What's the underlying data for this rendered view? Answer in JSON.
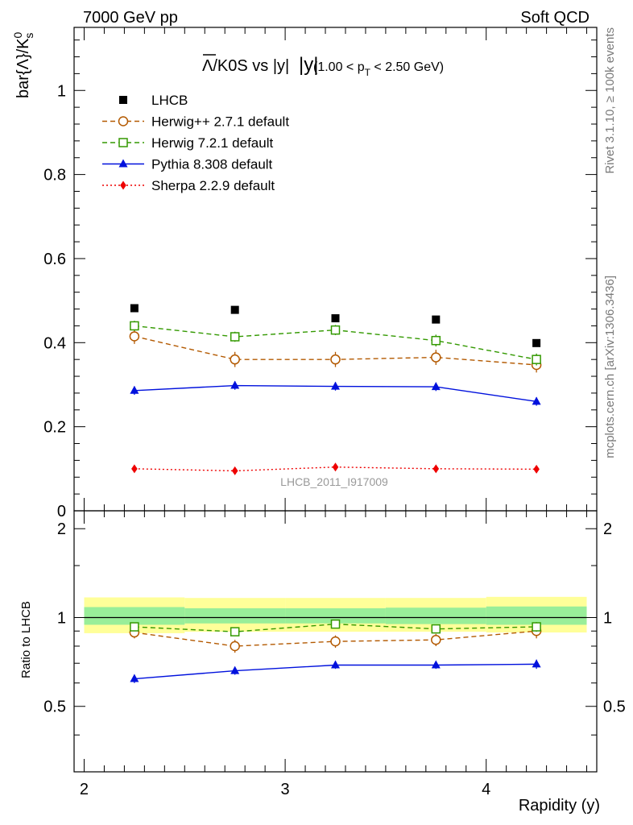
{
  "header": {
    "left_label": "7000 GeV pp",
    "right_label": "Soft QCD"
  },
  "side_labels": {
    "rivet": "Rivet 3.1.10, ≥ 100k events",
    "mcplots": "mcplots.cern.ch [arXiv:1306.3436]"
  },
  "colors": {
    "data": "#000000",
    "herwigpp": "#b35900",
    "herwig7": "#339900",
    "pythia": "#0011dd",
    "sherpa": "#ee0000",
    "band_outer": "#ffff99",
    "band_inner": "#99ee99"
  },
  "chart_data": [
    {
      "type": "scatter",
      "title_main": "/K0S vs |y|",
      "title_symbol": "Λ",
      "title_sub_pre": "(1.00 < p",
      "title_sub_sub": "T",
      "title_sub_post": " < 2.50 GeV)",
      "ylabel_main": "bar{Λ}/K",
      "ylabel_sup": "0",
      "ylabel_sub": "s",
      "watermark": "LHCB_2011_I917009",
      "xlim": [
        1.95,
        4.55
      ],
      "ylim": [
        0,
        1.15
      ],
      "y_ticks": [
        0,
        0.2,
        0.4,
        0.6,
        0.8,
        1
      ],
      "y_tick_labels": [
        "0",
        "0.2",
        "0.4",
        "0.6",
        "0.8",
        "1"
      ],
      "x": [
        2.25,
        2.75,
        3.25,
        3.75,
        4.25
      ],
      "series": [
        {
          "name": "LHCB",
          "key": "data",
          "values": [
            0.482,
            0.478,
            0.458,
            0.455,
            0.399
          ],
          "errors": [
            0.004,
            0.004,
            0.004,
            0.004,
            0.004
          ],
          "marker": "square",
          "line": "none"
        },
        {
          "name": "Herwig++ 2.7.1 default",
          "key": "herwigpp",
          "values": [
            0.415,
            0.36,
            0.36,
            0.365,
            0.347
          ],
          "errors": [
            0.018,
            0.018,
            0.018,
            0.018,
            0.018
          ],
          "marker": "circle-open",
          "line": "dashed"
        },
        {
          "name": "Herwig 7.2.1 default",
          "key": "herwig7",
          "values": [
            0.44,
            0.414,
            0.43,
            0.405,
            0.36
          ],
          "errors": [
            0.012,
            0.012,
            0.012,
            0.014,
            0.014
          ],
          "marker": "square-open",
          "line": "dashed"
        },
        {
          "name": "Pythia 8.308 default",
          "key": "pythia",
          "values": [
            0.286,
            0.298,
            0.296,
            0.295,
            0.26
          ],
          "errors": [
            0.01,
            0.01,
            0.01,
            0.01,
            0.01
          ],
          "marker": "triangle",
          "line": "solid"
        },
        {
          "name": "Sherpa 2.2.9 default",
          "key": "sherpa",
          "values": [
            0.1,
            0.095,
            0.104,
            0.1,
            0.099
          ],
          "errors": [
            0.004,
            0.004,
            0.004,
            0.004,
            0.004
          ],
          "marker": "diamond",
          "line": "dotted"
        }
      ],
      "legend_placement": "top-left"
    },
    {
      "type": "scatter",
      "ylabel": "Ratio to LHCB",
      "xlabel": "Rapidity (y)",
      "xlim": [
        1.95,
        4.55
      ],
      "ylim": [
        0.3,
        2.3
      ],
      "y_scale": "log",
      "y_ticks": [
        0.5,
        1,
        2
      ],
      "y_tick_labels": [
        "0.5",
        "1",
        "2"
      ],
      "x_ticks": [
        2,
        3,
        4
      ],
      "x_tick_labels": [
        "2",
        "3",
        "4"
      ],
      "reference_line": 1,
      "band_bins": [
        [
          2.0,
          2.5
        ],
        [
          2.5,
          3.0
        ],
        [
          3.0,
          3.5
        ],
        [
          3.5,
          4.0
        ],
        [
          4.0,
          4.5
        ]
      ],
      "band_inner": [
        [
          0.945,
          1.085
        ],
        [
          0.955,
          1.075
        ],
        [
          0.955,
          1.075
        ],
        [
          0.95,
          1.08
        ],
        [
          0.945,
          1.09
        ]
      ],
      "band_outer": [
        [
          0.885,
          1.17
        ],
        [
          0.895,
          1.165
        ],
        [
          0.895,
          1.165
        ],
        [
          0.895,
          1.165
        ],
        [
          0.89,
          1.175
        ]
      ],
      "x": [
        2.25,
        2.75,
        3.25,
        3.75,
        4.25
      ],
      "series": [
        {
          "name": "Herwig++ 2.7.1 default",
          "key": "herwigpp",
          "values": [
            0.89,
            0.8,
            0.83,
            0.84,
            0.9
          ],
          "errors": [
            0.04,
            0.04,
            0.04,
            0.04,
            0.05
          ],
          "marker": "circle-open",
          "line": "dashed"
        },
        {
          "name": "Herwig 7.2.1 default",
          "key": "herwig7",
          "values": [
            0.93,
            0.895,
            0.95,
            0.915,
            0.93
          ],
          "errors": [
            0.025,
            0.025,
            0.025,
            0.03,
            0.035
          ],
          "marker": "square-open",
          "line": "dashed"
        },
        {
          "name": "Pythia 8.308 default",
          "key": "pythia",
          "values": [
            0.62,
            0.66,
            0.69,
            0.69,
            0.695
          ],
          "errors": [
            0.02,
            0.02,
            0.02,
            0.02,
            0.025
          ],
          "marker": "triangle",
          "line": "solid"
        }
      ]
    }
  ]
}
